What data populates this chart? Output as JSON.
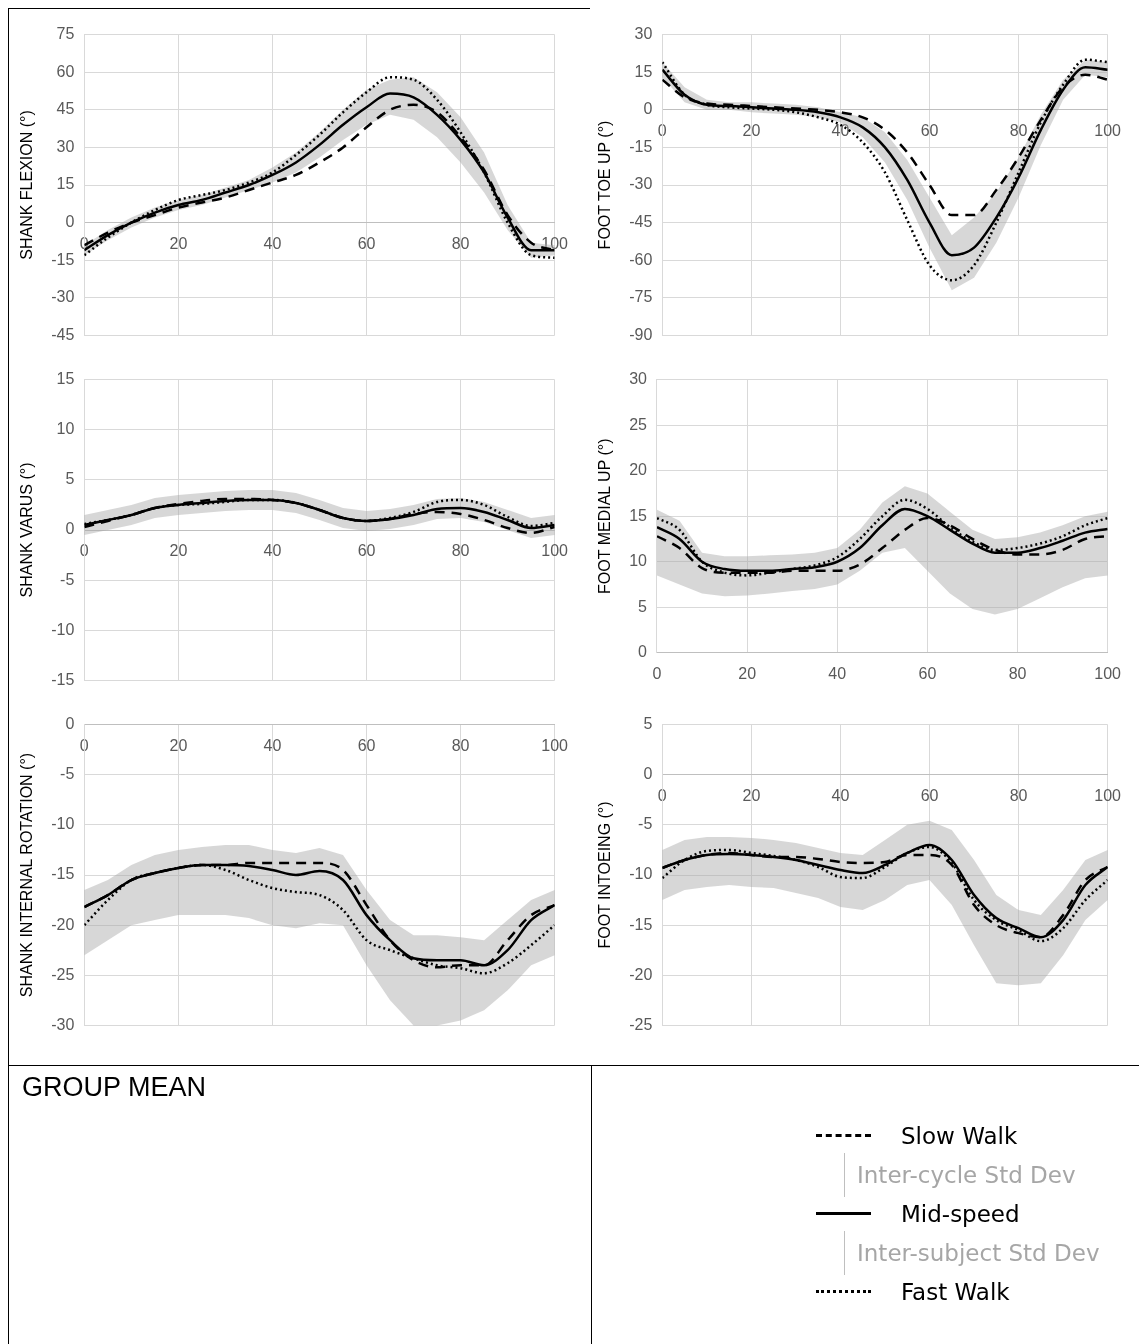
{
  "chart_data": [
    {
      "type": "line",
      "ylabel": "SHANK FLEXION (°)",
      "x": [
        0,
        5,
        10,
        15,
        20,
        25,
        30,
        35,
        40,
        45,
        50,
        55,
        60,
        65,
        70,
        75,
        80,
        85,
        90,
        95,
        100
      ],
      "xlim": [
        0,
        100
      ],
      "xticks": [
        0,
        20,
        40,
        60,
        80,
        100
      ],
      "ylim": [
        -45,
        75
      ],
      "yticks": [
        -45,
        -30,
        -15,
        0,
        15,
        30,
        45,
        60,
        75
      ],
      "grid": true,
      "legend": "bottom right",
      "annotations": [
        "GROUP MEAN",
        "Inter-cycle Std Dev",
        "Inter-subject Std Dev"
      ],
      "series": [
        {
          "name": "Slow Walk",
          "color": "#000000",
          "line_style": "dashed",
          "values": [
            -9,
            -4,
            0,
            3,
            6,
            8,
            10,
            13,
            16,
            19,
            24,
            30,
            38,
            45,
            47,
            44,
            34,
            21,
            3,
            -8,
            -11
          ]
        },
        {
          "name": "Mid-speed",
          "color": "#000000",
          "line_style": "solid",
          "values": [
            -11,
            -5,
            0,
            4,
            7,
            9,
            12,
            15,
            19,
            24,
            31,
            39,
            46,
            51.5,
            50,
            43,
            33,
            20,
            2,
            -11,
            -11
          ],
          "lower": [
            -13,
            -7,
            -2,
            2,
            5,
            7,
            10,
            13,
            16,
            20,
            26,
            33,
            39,
            43,
            41,
            34,
            24,
            12,
            -3,
            -14,
            -13
          ],
          "upper": [
            -9,
            -3,
            2,
            6,
            9,
            11,
            14,
            17,
            22,
            28,
            36,
            45,
            53,
            57,
            58,
            52,
            42,
            28,
            7,
            -8,
            -9
          ]
        },
        {
          "name": "Fast Walk",
          "color": "#000000",
          "line_style": "dotted",
          "values": [
            -13,
            -6,
            0,
            5,
            9,
            11,
            13,
            16,
            20,
            27,
            35,
            44,
            52,
            58,
            57,
            49,
            36,
            20,
            0,
            -13,
            -14
          ]
        }
      ]
    },
    {
      "type": "line",
      "ylabel": "FOOT TOE UP (°)",
      "x": [
        0,
        5,
        10,
        15,
        20,
        25,
        30,
        35,
        40,
        45,
        50,
        55,
        60,
        65,
        70,
        75,
        80,
        85,
        90,
        95,
        100
      ],
      "xlim": [
        0,
        100
      ],
      "xticks": [
        0,
        20,
        40,
        60,
        80,
        100
      ],
      "ylim": [
        -90,
        30
      ],
      "yticks": [
        -90,
        -75,
        -60,
        -45,
        -30,
        -15,
        0,
        15,
        30
      ],
      "grid": true,
      "series": [
        {
          "color": "#000000",
          "line_style": "dashed",
          "values": [
            12,
            5,
            2.5,
            2,
            1.5,
            1,
            0.5,
            0,
            -1,
            -3,
            -8,
            -17,
            -30,
            -42,
            -42,
            -32,
            -19,
            -4,
            9,
            14,
            12
          ]
        },
        {
          "color": "#000000",
          "line_style": "solid",
          "values": [
            16,
            6,
            2,
            1.5,
            1,
            0.5,
            0,
            -1,
            -3,
            -7,
            -15,
            -28,
            -45,
            -58,
            -55,
            -43,
            -27,
            -8,
            8,
            17,
            16
          ],
          "lower": [
            13,
            3,
            0,
            0,
            -1,
            -1.5,
            -2,
            -3,
            -5,
            -11,
            -21,
            -36,
            -55,
            -72,
            -67,
            -53,
            -35,
            -14,
            4,
            14,
            13
          ],
          "upper": [
            19,
            9,
            4,
            3,
            3,
            2.5,
            2,
            1,
            -1,
            -3,
            -9,
            -20,
            -35,
            -50,
            -43,
            -33,
            -19,
            -2,
            12,
            20,
            19
          ]
        },
        {
          "color": "#000000",
          "line_style": "dotted",
          "values": [
            19,
            6,
            2,
            1,
            0.5,
            0,
            -1,
            -3,
            -6,
            -13,
            -25,
            -44,
            -62,
            -68,
            -62,
            -45,
            -25,
            -5,
            10,
            20,
            19
          ]
        }
      ]
    },
    {
      "type": "line",
      "ylabel": "SHANK VARUS (°)",
      "x": [
        0,
        5,
        10,
        15,
        20,
        25,
        30,
        35,
        40,
        45,
        50,
        55,
        60,
        65,
        70,
        75,
        80,
        85,
        90,
        95,
        100
      ],
      "xlim": [
        0,
        100
      ],
      "xticks": [
        0,
        20,
        40,
        60,
        80,
        100
      ],
      "ylim": [
        -15,
        15
      ],
      "yticks": [
        -15,
        -10,
        -5,
        0,
        5,
        10,
        15
      ],
      "grid": true,
      "series": [
        {
          "color": "#000000",
          "line_style": "dashed",
          "values": [
            0.3,
            0.9,
            1.5,
            2.2,
            2.6,
            2.9,
            3.1,
            3.1,
            3,
            2.7,
            2,
            1.2,
            0.9,
            1.1,
            1.6,
            1.8,
            1.6,
            1,
            0.2,
            -0.3,
            0.3
          ]
        },
        {
          "color": "#000000",
          "line_style": "solid",
          "values": [
            0.5,
            1,
            1.5,
            2.2,
            2.5,
            2.7,
            2.9,
            3,
            3,
            2.7,
            2,
            1.2,
            0.9,
            1.1,
            1.5,
            2.1,
            2.2,
            1.8,
            1,
            0.2,
            0.5
          ],
          "lower": [
            -0.5,
            0,
            0.5,
            1.2,
            1.5,
            1.7,
            1.9,
            2,
            2,
            1.7,
            1,
            0.2,
            -0.1,
            0.1,
            0.5,
            1.1,
            1.2,
            0.8,
            0,
            -0.8,
            -0.5
          ],
          "upper": [
            1.5,
            2,
            2.5,
            3.2,
            3.5,
            3.7,
            3.9,
            4,
            4,
            3.7,
            3,
            2.2,
            1.9,
            2.1,
            2.5,
            3.1,
            3.2,
            2.8,
            2,
            1.2,
            1.5
          ]
        },
        {
          "color": "#000000",
          "line_style": "dotted",
          "values": [
            0.6,
            1,
            1.5,
            2.2,
            2.5,
            2.6,
            2.8,
            3,
            3,
            2.7,
            2,
            1.2,
            0.9,
            1.2,
            1.8,
            2.8,
            3,
            2.5,
            1.3,
            0.4,
            0.7
          ]
        }
      ]
    },
    {
      "type": "line",
      "ylabel": "FOOT MEDIAL UP (°)",
      "x": [
        0,
        5,
        10,
        15,
        20,
        25,
        30,
        35,
        40,
        45,
        50,
        55,
        60,
        65,
        70,
        75,
        80,
        85,
        90,
        95,
        100
      ],
      "xlim": [
        0,
        100
      ],
      "xticks": [
        0,
        20,
        40,
        60,
        80,
        100
      ],
      "ylim": [
        0,
        30
      ],
      "yticks": [
        0,
        5,
        10,
        15,
        20,
        25,
        30
      ],
      "grid": true,
      "series": [
        {
          "color": "#000000",
          "line_style": "dashed",
          "values": [
            12.8,
            11.5,
            9.3,
            8.8,
            8.8,
            8.8,
            9,
            9,
            9,
            9.7,
            11.5,
            13.5,
            14.8,
            14,
            12.5,
            11.3,
            10.8,
            10.8,
            11.3,
            12.5,
            12.8
          ]
        },
        {
          "color": "#000000",
          "line_style": "solid",
          "values": [
            13.8,
            12.5,
            10,
            9.2,
            9,
            9,
            9.2,
            9.4,
            10,
            11.5,
            14,
            15.8,
            15,
            13.5,
            12,
            11,
            11,
            11.5,
            12.3,
            13.2,
            13.6
          ],
          "lower": [
            8.5,
            7.5,
            6.5,
            6.2,
            6.3,
            6.5,
            6.8,
            7,
            7.5,
            9,
            11,
            11.5,
            9,
            6.5,
            4.8,
            4.2,
            4.8,
            6,
            7.2,
            8.2,
            8.5
          ],
          "upper": [
            15.7,
            14.5,
            11,
            10.6,
            10.6,
            10.7,
            10.8,
            11,
            11.5,
            13.5,
            16.5,
            18.3,
            17.5,
            15.5,
            13.5,
            12.5,
            12.7,
            13.2,
            14,
            15,
            15.5
          ]
        },
        {
          "color": "#000000",
          "line_style": "dotted",
          "values": [
            14.8,
            13.5,
            10,
            8.8,
            8.5,
            8.8,
            9.2,
            9.6,
            10.5,
            12.5,
            15,
            16.8,
            15.8,
            13.8,
            12.2,
            11.3,
            11.5,
            12,
            12.8,
            14,
            14.8
          ]
        }
      ]
    },
    {
      "type": "line",
      "ylabel": "SHANK INTERNAL ROTATION (°)",
      "x": [
        0,
        5,
        10,
        15,
        20,
        25,
        30,
        35,
        40,
        45,
        50,
        55,
        60,
        65,
        70,
        75,
        80,
        85,
        90,
        95,
        100
      ],
      "xlim": [
        0,
        100
      ],
      "xticks": [
        0,
        20,
        40,
        60,
        80,
        100
      ],
      "ylim": [
        -30,
        0
      ],
      "yticks": [
        -30,
        -25,
        -20,
        -15,
        -10,
        -5,
        0
      ],
      "grid": true,
      "series": [
        {
          "color": "#000000",
          "line_style": "dashed",
          "values": [
            -18.2,
            -17,
            -15.5,
            -14.8,
            -14.3,
            -14,
            -14,
            -13.8,
            -13.8,
            -13.8,
            -13.8,
            -14.5,
            -18,
            -21.5,
            -23.5,
            -24.2,
            -24,
            -24,
            -21.5,
            -19,
            -18
          ]
        },
        {
          "color": "#000000",
          "line_style": "solid",
          "values": [
            -18.2,
            -17,
            -15.5,
            -14.8,
            -14.3,
            -14,
            -14,
            -14.1,
            -14.5,
            -15,
            -14.6,
            -15.5,
            -19,
            -21.5,
            -23.3,
            -23.5,
            -23.5,
            -24,
            -22.5,
            -19.5,
            -18
          ],
          "lower": [
            -23,
            -21.5,
            -20,
            -19.5,
            -19,
            -19,
            -19,
            -19.3,
            -20,
            -20.3,
            -19.8,
            -20,
            -24,
            -27.5,
            -30,
            -30,
            -29.5,
            -28.5,
            -26.5,
            -24,
            -23
          ],
          "upper": [
            -16.5,
            -15.5,
            -14,
            -13,
            -12.5,
            -12.2,
            -12,
            -12,
            -12.5,
            -12.8,
            -12.3,
            -13,
            -16.5,
            -19.5,
            -21,
            -21,
            -21.2,
            -21.5,
            -19.5,
            -17.5,
            -16.5
          ]
        },
        {
          "color": "#000000",
          "line_style": "dotted",
          "values": [
            -20,
            -17.5,
            -15.5,
            -14.8,
            -14.3,
            -14,
            -14.5,
            -15.5,
            -16.3,
            -16.7,
            -17,
            -18.5,
            -21.5,
            -22.5,
            -23.3,
            -24,
            -24.3,
            -24.8,
            -23.8,
            -22,
            -20
          ]
        }
      ]
    },
    {
      "type": "line",
      "ylabel": "FOOT INTOEING (°)",
      "x": [
        0,
        5,
        10,
        15,
        20,
        25,
        30,
        35,
        40,
        45,
        50,
        55,
        60,
        65,
        70,
        75,
        80,
        85,
        90,
        95,
        100
      ],
      "xlim": [
        0,
        100
      ],
      "xticks": [
        0,
        20,
        40,
        60,
        80,
        100
      ],
      "ylim": [
        -25,
        5
      ],
      "yticks": [
        -25,
        -20,
        -15,
        -10,
        -5,
        0,
        5
      ],
      "grid": true,
      "series": [
        {
          "color": "#000000",
          "line_style": "dashed",
          "values": [
            -9.3,
            -8.5,
            -8,
            -7.8,
            -8,
            -8.2,
            -8.2,
            -8.4,
            -8.7,
            -8.8,
            -8.7,
            -8,
            -8,
            -9,
            -13,
            -15,
            -15.8,
            -16.2,
            -14,
            -10.5,
            -9.2
          ]
        },
        {
          "color": "#000000",
          "line_style": "solid",
          "values": [
            -9.3,
            -8.5,
            -8,
            -7.9,
            -8,
            -8.2,
            -8.5,
            -9,
            -9.5,
            -9.8,
            -9,
            -7.8,
            -7,
            -8.5,
            -12,
            -14.3,
            -15.3,
            -16.2,
            -14.5,
            -11,
            -9.2
          ],
          "lower": [
            -12.5,
            -11.5,
            -11.2,
            -11,
            -11.2,
            -11.3,
            -11.8,
            -12.3,
            -13.2,
            -13.5,
            -12.5,
            -11,
            -10.5,
            -13,
            -17,
            -20.8,
            -21,
            -20.8,
            -18,
            -14.5,
            -12.5
          ],
          "upper": [
            -7.5,
            -6.5,
            -6.2,
            -6.2,
            -6.3,
            -6.5,
            -6.8,
            -7.3,
            -7.8,
            -8,
            -6.5,
            -5,
            -4.6,
            -5.5,
            -8.5,
            -12,
            -13.5,
            -14,
            -11.5,
            -8.5,
            -7.5
          ]
        },
        {
          "color": "#000000",
          "line_style": "dotted",
          "values": [
            -10.3,
            -8.5,
            -7.6,
            -7.5,
            -7.8,
            -8.1,
            -8.5,
            -9.2,
            -10.2,
            -10.3,
            -9.2,
            -7.8,
            -7.2,
            -8.8,
            -12.5,
            -14.5,
            -15.5,
            -16.6,
            -15.3,
            -12.5,
            -10.5
          ]
        }
      ]
    }
  ]
}
